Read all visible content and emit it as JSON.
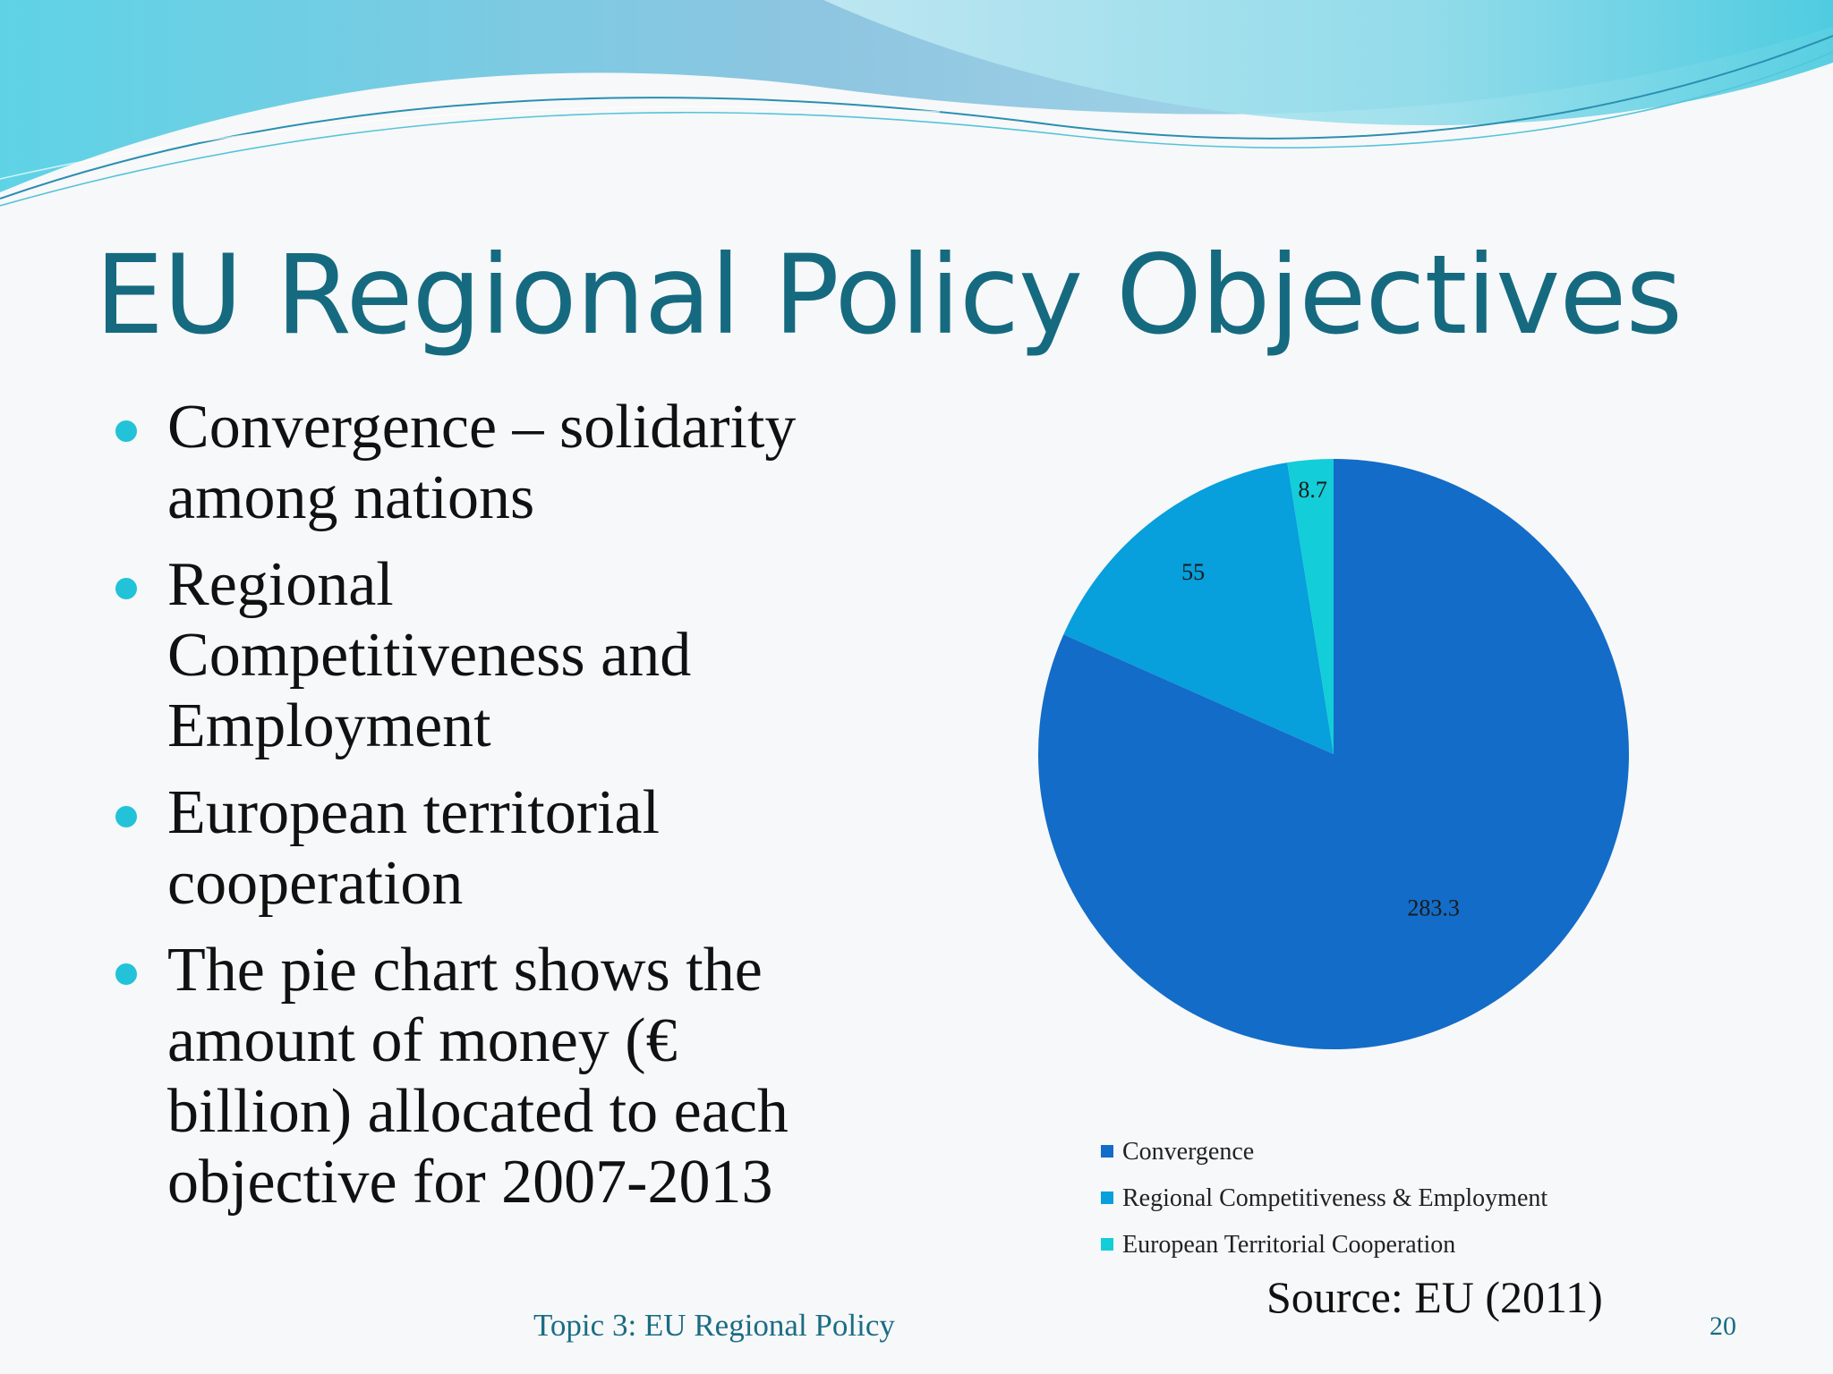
{
  "slide": {
    "title": "EU Regional Policy Objectives",
    "bullets": [
      {
        "lines": [
          "Convergence – solidarity",
          "among nations"
        ]
      },
      {
        "lines": [
          "Regional",
          "Competitiveness and",
          "Employment"
        ]
      },
      {
        "lines": [
          "European territorial",
          "cooperation"
        ]
      },
      {
        "lines": [
          "The pie chart shows the",
          "amount of money (€",
          "billion) allocated to each",
          "objective for 2007-2013"
        ]
      }
    ],
    "source": "Source: EU (2011)",
    "footer": "Topic 3: EU Regional Policy",
    "page_number": "20"
  },
  "colors": {
    "title": "#166a80",
    "bullet": "#22c3d8",
    "convergence": "#136cc7",
    "regional": "#079fdc",
    "territorial": "#13cdd8"
  },
  "chart_data": {
    "type": "pie",
    "title": "",
    "slices": [
      {
        "name": "Convergence",
        "value": 283.3,
        "label": "283.3",
        "color": "#136cc7"
      },
      {
        "name": "Regional Competitiveness & Employment",
        "value": 55,
        "label": "55",
        "color": "#079fdc"
      },
      {
        "name": "European Territorial Cooperation",
        "value": 8.7,
        "label": "8.7",
        "color": "#13cdd8"
      }
    ],
    "start": "12 o'clock",
    "direction": "clockwise",
    "legend_position": "bottom"
  }
}
